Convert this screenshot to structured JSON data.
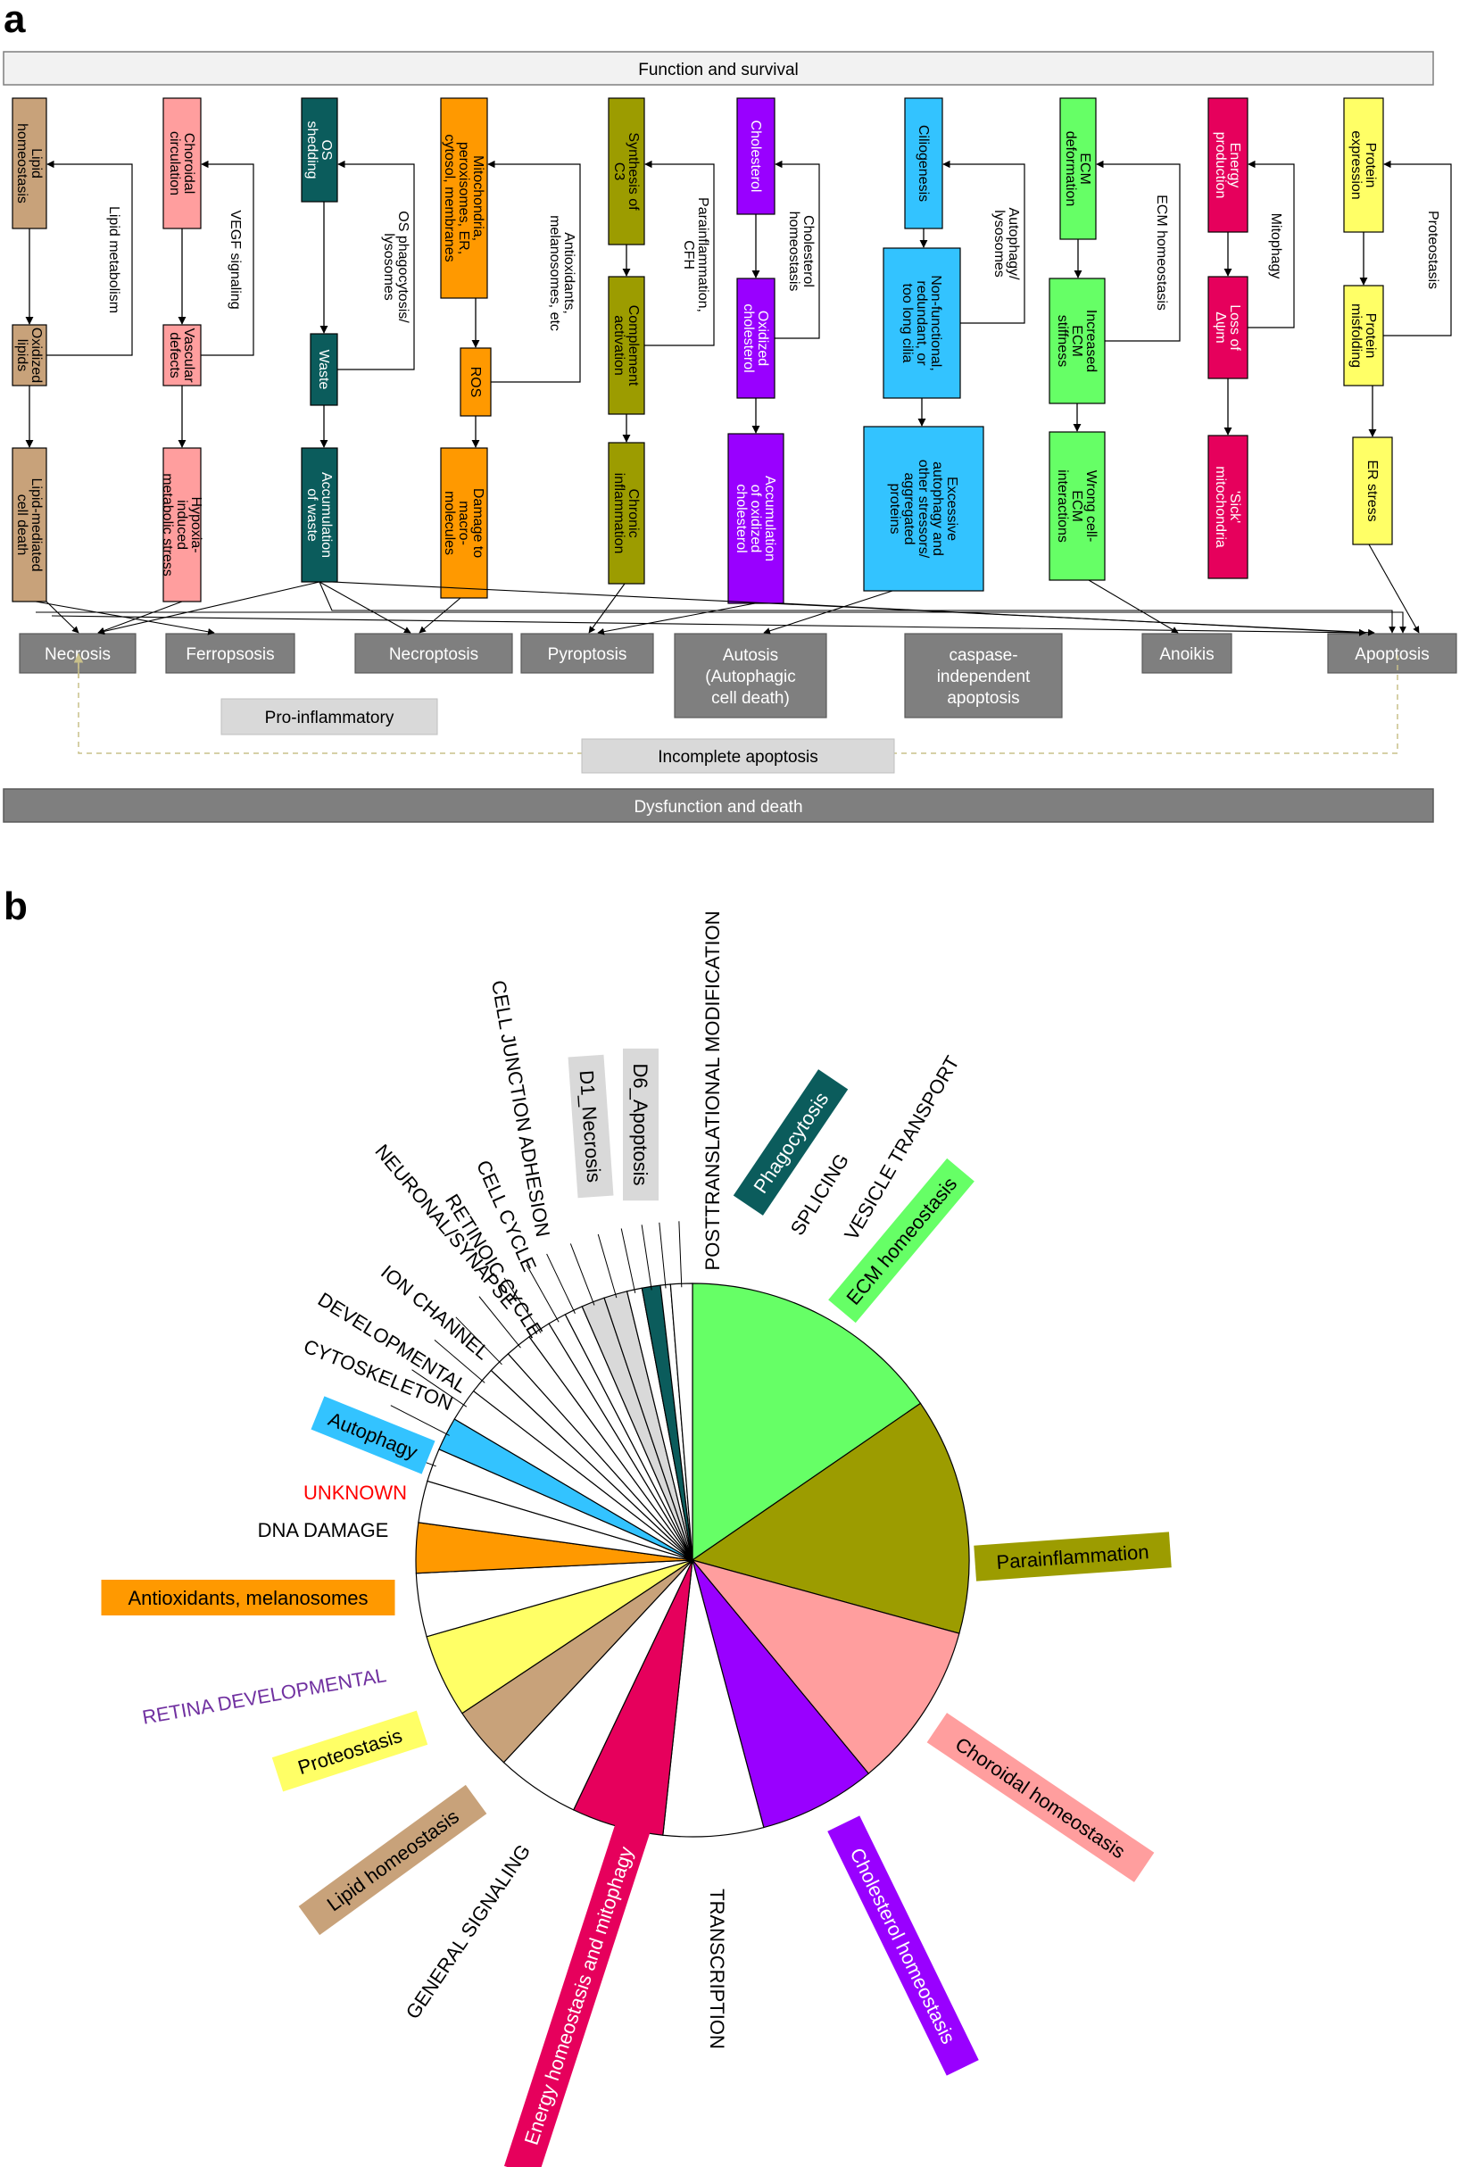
{
  "panel_a": {
    "letter": "a",
    "top_bar": "Function and survival",
    "bottom_bar": "Dysfunction and death",
    "columns": [
      {
        "id": "lipid",
        "color": "#c8a27a",
        "text_color": "#000000",
        "boxes": [
          [
            "Lipid",
            "homeostasis"
          ],
          [
            "Oxidized",
            "lipids"
          ],
          [
            "Lipid-mediated",
            "cell death"
          ]
        ],
        "feedback": [
          "Lipid metabolism"
        ]
      },
      {
        "id": "choroid",
        "color": "#ff9e9e",
        "text_color": "#000000",
        "boxes": [
          [
            "Choroidal",
            "circulation"
          ],
          [
            "Vascular",
            "defects"
          ],
          [
            "Hypoxia-",
            "induced",
            "metabolic stress"
          ]
        ],
        "feedback": [
          "VEGF signaling"
        ]
      },
      {
        "id": "os",
        "color": "#0b5c5c",
        "text_color": "#ffffff",
        "boxes": [
          [
            "OS",
            "shedding"
          ],
          [
            "Waste"
          ],
          [
            "Accumulation",
            "of waste"
          ]
        ],
        "feedback": [
          "OS phagocytosis/",
          "lysosomes"
        ]
      },
      {
        "id": "mito",
        "color": "#ff9900",
        "text_color": "#000000",
        "boxes": [
          [
            "Mitochondria,",
            "peroxisomes, ER,",
            "cytosol, membranes"
          ],
          [
            "ROS"
          ],
          [
            "Damage to",
            "macro-",
            "molecules"
          ]
        ],
        "feedback": [
          "Antioxidants,",
          "melanosomes, etc"
        ]
      },
      {
        "id": "c3",
        "color": "#9c9c00",
        "text_color": "#000000",
        "boxes": [
          [
            "Synthesis of",
            "C3"
          ],
          [
            "Complement",
            "activation"
          ],
          [
            "Chronic",
            "inflammation"
          ]
        ],
        "feedback": [
          "Parainflammation,",
          "CFH"
        ]
      },
      {
        "id": "chol",
        "color": "#9900ff",
        "text_color": "#ffffff",
        "boxes": [
          [
            "Cholesterol"
          ],
          [
            "Oxidized",
            "cholesterol"
          ],
          [
            "Accumulation",
            "of oxidized",
            "cholesterol"
          ]
        ],
        "feedback": [
          "Cholesterol",
          "homeostasis"
        ]
      },
      {
        "id": "cilio",
        "color": "#33c3ff",
        "text_color": "#000000",
        "boxes": [
          [
            "Ciliogenesis"
          ],
          [
            "Non-functional,",
            "redundant, or",
            "too long cilia"
          ],
          [
            "Excessive",
            "autophagy and",
            "other stressors/",
            "aggregated",
            "proteins"
          ]
        ],
        "feedback": [
          "Autophagy/",
          "lysosomes"
        ]
      },
      {
        "id": "ecm",
        "color": "#66ff66",
        "text_color": "#000000",
        "boxes": [
          [
            "ECM",
            "deformation"
          ],
          [
            "Increased",
            "ECM",
            "stiffness"
          ],
          [
            "Wrong cell-",
            "ECM",
            "interactions"
          ]
        ],
        "feedback": [
          "ECM homeostasis"
        ]
      },
      {
        "id": "energy",
        "color": "#e6005c",
        "text_color": "#ffffff",
        "boxes": [
          [
            "Energy",
            "production"
          ],
          [
            "Loss of",
            "Δψm"
          ],
          [
            "'Sick'",
            "mitochondria"
          ]
        ],
        "feedback": [
          "Mitophagy"
        ]
      },
      {
        "id": "protein",
        "color": "#ffff66",
        "text_color": "#000000",
        "boxes": [
          [
            "Protein",
            "expression"
          ],
          [
            "Protein",
            "misfolding"
          ],
          [
            "ER stress"
          ]
        ],
        "feedback": [
          "Proteostasis"
        ]
      }
    ],
    "death_boxes": [
      {
        "id": "necrosis",
        "lines": [
          "Necrosis"
        ]
      },
      {
        "id": "ferroptosis",
        "lines": [
          "Ferropsosis"
        ]
      },
      {
        "id": "necroptosis",
        "lines": [
          "Necroptosis"
        ]
      },
      {
        "id": "pyroptosis",
        "lines": [
          "Pyroptosis"
        ]
      },
      {
        "id": "autosis",
        "lines": [
          "Autosis",
          "(Autophagic",
          "cell death)"
        ]
      },
      {
        "id": "caspase",
        "lines": [
          "caspase-",
          "independent",
          "apoptosis"
        ]
      },
      {
        "id": "anoikis",
        "lines": [
          "Anoikis"
        ]
      },
      {
        "id": "apoptosis",
        "lines": [
          "Apoptosis"
        ]
      }
    ],
    "pro_inflammatory": "Pro-inflammatory",
    "incomplete_apoptosis": "Incomplete apoptosis"
  },
  "panel_b": {
    "letter": "b",
    "chart_data": {
      "type": "pie",
      "slices": [
        {
          "label": "ECM homeostasis",
          "value": 15.8,
          "color": "#66ff66",
          "label_bg": "#66ff66",
          "label_color": "#000000"
        },
        {
          "label": "Parainflammation",
          "value": 14.2,
          "color": "#9c9c00",
          "label_bg": "#9c9c00",
          "label_color": "#000000"
        },
        {
          "label": "Choroidal homeostasis",
          "value": 10.0,
          "color": "#ff9e9e",
          "label_bg": "#ff9e9e",
          "label_color": "#000000"
        },
        {
          "label": "Cholesterol homeostasis",
          "value": 7.0,
          "color": "#9900ff",
          "label_bg": "#9900ff",
          "label_color": "#ffffff"
        },
        {
          "label": "TRANSCRIPTION",
          "value": 6.0,
          "color": "#ffffff",
          "label_bg": "",
          "label_color": "#000000"
        },
        {
          "label": "Energy homeostasis and mitophagy",
          "value": 5.5,
          "color": "#e6005c",
          "label_bg": "#e6005c",
          "label_color": "#ffffff"
        },
        {
          "label": "GENERAL SIGNALING",
          "value": 5.0,
          "color": "#ffffff",
          "label_bg": "",
          "label_color": "#000000"
        },
        {
          "label": "Lipid homeostasis",
          "value": 3.8,
          "color": "#c8a27a",
          "label_bg": "#c8a27a",
          "label_color": "#000000"
        },
        {
          "label": "Proteostasis",
          "value": 5.0,
          "color": "#ffff66",
          "label_bg": "#ffff66",
          "label_color": "#000000"
        },
        {
          "label": "RETINA DEVELOPMENTAL",
          "value": 3.8,
          "color": "#ffffff",
          "label_bg": "",
          "label_color": "#7030a0"
        },
        {
          "label": "Antioxidants, melanosomes",
          "value": 3.0,
          "color": "#ff9900",
          "label_bg": "#ff9900",
          "label_color": "#000000"
        },
        {
          "label": "DNA DAMAGE",
          "value": 2.5,
          "color": "#ffffff",
          "label_bg": "",
          "label_color": "#000000"
        },
        {
          "label": "UNKNOWN",
          "value": 2.0,
          "color": "#ffffff",
          "label_bg": "",
          "label_color": "#ff0000"
        },
        {
          "label": "Autophagy",
          "value": 2.0,
          "color": "#33c3ff",
          "label_bg": "#33c3ff",
          "label_color": "#000000"
        },
        {
          "label": "CYTOSKELETON",
          "value": 2.0,
          "color": "#ffffff",
          "label_bg": "",
          "label_color": "#000000"
        },
        {
          "label": "DEVELOPMENTAL",
          "value": 1.6,
          "color": "#ffffff",
          "label_bg": "",
          "label_color": "#000000"
        },
        {
          "label": "ION CHANNEL",
          "value": 1.4,
          "color": "#ffffff",
          "label_bg": "",
          "label_color": "#000000"
        },
        {
          "label": "NEURONAL/SYNAPSE",
          "value": 1.6,
          "color": "#ffffff",
          "label_bg": "",
          "label_color": "#000000"
        },
        {
          "label": "RETINOIC CYCLE",
          "value": 1.4,
          "color": "#ffffff",
          "label_bg": "",
          "label_color": "#000000"
        },
        {
          "label": "CELL CYCLE",
          "value": 1.1,
          "color": "#ffffff",
          "label_bg": "",
          "label_color": "#000000"
        },
        {
          "label": "CELL JUNCTION ADHESION",
          "value": 1.1,
          "color": "#ffffff",
          "label_bg": "",
          "label_color": "#000000"
        },
        {
          "label": "D1_Necrosis",
          "value": 1.4,
          "color": "#d9d9d9",
          "label_bg": "#d9d9d9",
          "label_color": "#000000"
        },
        {
          "label": "D6_Apoptosis",
          "value": 1.4,
          "color": "#d9d9d9",
          "label_bg": "#d9d9d9",
          "label_color": "#000000"
        },
        {
          "label": "POSTTRANSLATIONAL MODIFICATION",
          "value": 0.9,
          "color": "#ffffff",
          "label_bg": "",
          "label_color": "#000000"
        },
        {
          "label": "Phagocytosis",
          "value": 1.1,
          "color": "#0b5c5c",
          "label_bg": "#0b5c5c",
          "label_color": "#ffffff"
        },
        {
          "label": "SPLICING",
          "value": 0.6,
          "color": "#ffffff",
          "label_bg": "",
          "label_color": "#000000"
        },
        {
          "label": "VESICLE TRANSPORT",
          "value": 1.3,
          "color": "#ffffff",
          "label_bg": "",
          "label_color": "#000000"
        }
      ]
    }
  }
}
